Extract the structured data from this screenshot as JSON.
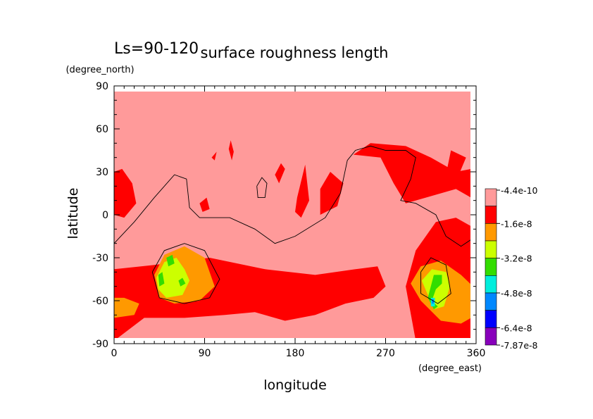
{
  "chart_data": {
    "type": "heatmap",
    "title": "surface roughness length",
    "subtitle": "Ls=90-120",
    "xlabel": "longitude",
    "ylabel": "latitude",
    "x_unit": "(degree_east)",
    "y_unit": "(degree_north)",
    "xlim": [
      0,
      360
    ],
    "ylim": [
      -90,
      90
    ],
    "x_ticks": [
      "0",
      "90",
      "180",
      "270",
      "360"
    ],
    "y_ticks": [
      "90",
      "60",
      "30",
      "0",
      "-30",
      "-60",
      "-90"
    ],
    "x_tick_values": [
      0,
      90,
      180,
      270,
      360
    ],
    "y_tick_values": [
      90,
      60,
      30,
      0,
      -30,
      -60,
      -90
    ],
    "colorbar": {
      "labels": [
        "-4.4e-10",
        "-1.6e-8",
        "-3.2e-8",
        "-4.8e-8",
        "-6.4e-8",
        "-7.87e-8"
      ],
      "colors": [
        "#ff9a9a",
        "#ff0000",
        "#ff9900",
        "#ccff00",
        "#33dd00",
        "#00eedd",
        "#0088ff",
        "#0000ff",
        "#8800bb"
      ]
    },
    "background_color": "#ff9a9a",
    "regions": [
      {
        "level": 1,
        "color": "#ff0000",
        "points": [
          [
            0,
            -88
          ],
          [
            0,
            -38
          ],
          [
            40,
            -35
          ],
          [
            95,
            -30
          ],
          [
            150,
            -38
          ],
          [
            200,
            -42
          ],
          [
            240,
            -38
          ],
          [
            262,
            -36
          ],
          [
            270,
            -50
          ],
          [
            258,
            -58
          ],
          [
            230,
            -62
          ],
          [
            200,
            -70
          ],
          [
            170,
            -74
          ],
          [
            140,
            -68
          ],
          [
            110,
            -70
          ],
          [
            70,
            -72
          ],
          [
            30,
            -72
          ],
          [
            0,
            -88
          ]
        ]
      },
      {
        "level": 1,
        "color": "#ff0000",
        "points": [
          [
            300,
            -88
          ],
          [
            290,
            -50
          ],
          [
            300,
            -25
          ],
          [
            320,
            -5
          ],
          [
            340,
            -2
          ],
          [
            360,
            -10
          ],
          [
            360,
            -88
          ],
          [
            300,
            -88
          ]
        ]
      },
      {
        "level": 1,
        "color": "#ff0000",
        "points": [
          [
            238,
            42
          ],
          [
            255,
            50
          ],
          [
            290,
            48
          ],
          [
            315,
            40
          ],
          [
            340,
            30
          ],
          [
            355,
            32
          ],
          [
            360,
            45
          ],
          [
            360,
            10
          ],
          [
            340,
            18
          ],
          [
            310,
            12
          ],
          [
            290,
            8
          ],
          [
            278,
            22
          ],
          [
            265,
            40
          ],
          [
            238,
            42
          ]
        ]
      },
      {
        "level": 1,
        "color": "#ff0000",
        "points": [
          [
            0,
            30
          ],
          [
            8,
            32
          ],
          [
            18,
            22
          ],
          [
            22,
            8
          ],
          [
            10,
            -2
          ],
          [
            0,
            0
          ],
          [
            0,
            30
          ]
        ]
      },
      {
        "level": 1,
        "color": "#ff0000",
        "points": [
          [
            205,
            0
          ],
          [
            222,
            6
          ],
          [
            228,
            22
          ],
          [
            215,
            30
          ],
          [
            205,
            18
          ],
          [
            205,
            0
          ]
        ]
      },
      {
        "level": 1,
        "color": "#ff0000",
        "points": [
          [
            186,
            -2
          ],
          [
            194,
            10
          ],
          [
            190,
            35
          ],
          [
            182,
            12
          ],
          [
            180,
            2
          ],
          [
            186,
            -2
          ]
        ]
      },
      {
        "level": 1,
        "color": "#ff0000",
        "points": [
          [
            164,
            22
          ],
          [
            170,
            32
          ],
          [
            166,
            36
          ],
          [
            160,
            28
          ],
          [
            164,
            22
          ]
        ]
      },
      {
        "level": 1,
        "color": "#ff0000",
        "points": [
          [
            85,
            8
          ],
          [
            92,
            12
          ],
          [
            95,
            4
          ],
          [
            88,
            2
          ],
          [
            85,
            8
          ]
        ]
      },
      {
        "level": 1,
        "color": "#ff0000",
        "points": [
          [
            116,
            52
          ],
          [
            119,
            44
          ],
          [
            117,
            38
          ],
          [
            114,
            46
          ],
          [
            116,
            52
          ]
        ]
      },
      {
        "level": 1,
        "color": "#ff0000",
        "points": [
          [
            330,
            28
          ],
          [
            344,
            30
          ],
          [
            350,
            40
          ],
          [
            335,
            45
          ],
          [
            330,
            28
          ]
        ]
      },
      {
        "level": 1,
        "color": "#ff0000",
        "points": [
          [
            97,
            40
          ],
          [
            102,
            44
          ],
          [
            100,
            38
          ],
          [
            97,
            40
          ]
        ]
      },
      {
        "level": 2,
        "color": "#ff9900",
        "points": [
          [
            40,
            -42
          ],
          [
            50,
            -28
          ],
          [
            70,
            -22
          ],
          [
            90,
            -30
          ],
          [
            100,
            -50
          ],
          [
            85,
            -60
          ],
          [
            60,
            -62
          ],
          [
            45,
            -58
          ],
          [
            40,
            -42
          ]
        ]
      },
      {
        "level": 2,
        "color": "#ff9900",
        "points": [
          [
            0,
            -58
          ],
          [
            10,
            -58
          ],
          [
            25,
            -62
          ],
          [
            20,
            -70
          ],
          [
            0,
            -72
          ],
          [
            0,
            -58
          ]
        ]
      },
      {
        "level": 2,
        "color": "#ff9900",
        "points": [
          [
            295,
            -48
          ],
          [
            305,
            -36
          ],
          [
            325,
            -32
          ],
          [
            345,
            -42
          ],
          [
            360,
            -52
          ],
          [
            360,
            -70
          ],
          [
            345,
            -76
          ],
          [
            325,
            -74
          ],
          [
            305,
            -60
          ],
          [
            295,
            -48
          ]
        ]
      },
      {
        "level": 3,
        "color": "#ccff00",
        "points": [
          [
            42,
            -44
          ],
          [
            50,
            -33
          ],
          [
            62,
            -30
          ],
          [
            70,
            -38
          ],
          [
            75,
            -46
          ],
          [
            68,
            -56
          ],
          [
            52,
            -58
          ],
          [
            44,
            -52
          ],
          [
            42,
            -44
          ]
        ]
      },
      {
        "level": 3,
        "color": "#ccff00",
        "points": [
          [
            306,
            -46
          ],
          [
            316,
            -38
          ],
          [
            330,
            -40
          ],
          [
            334,
            -50
          ],
          [
            328,
            -64
          ],
          [
            318,
            -66
          ],
          [
            312,
            -56
          ],
          [
            306,
            -46
          ]
        ]
      },
      {
        "level": 4,
        "color": "#33dd00",
        "points": [
          [
            52,
            -30
          ],
          [
            58,
            -28
          ],
          [
            60,
            -34
          ],
          [
            54,
            -36
          ],
          [
            52,
            -30
          ]
        ]
      },
      {
        "level": 4,
        "color": "#33dd00",
        "points": [
          [
            44,
            -42
          ],
          [
            48,
            -40
          ],
          [
            50,
            -48
          ],
          [
            45,
            -50
          ],
          [
            44,
            -42
          ]
        ]
      },
      {
        "level": 4,
        "color": "#33dd00",
        "points": [
          [
            64,
            -46
          ],
          [
            68,
            -44
          ],
          [
            71,
            -48
          ],
          [
            66,
            -50
          ],
          [
            64,
            -46
          ]
        ]
      },
      {
        "level": 4,
        "color": "#33dd00",
        "points": [
          [
            318,
            -42
          ],
          [
            326,
            -42
          ],
          [
            326,
            -48
          ],
          [
            320,
            -52
          ],
          [
            316,
            -60
          ],
          [
            322,
            -64
          ],
          [
            318,
            -66
          ],
          [
            312,
            -58
          ],
          [
            318,
            -42
          ]
        ]
      },
      {
        "level": 5,
        "color": "#00eedd",
        "points": [
          [
            315,
            -58
          ],
          [
            319,
            -58
          ],
          [
            319,
            -64
          ],
          [
            315,
            -64
          ],
          [
            315,
            -58
          ]
        ]
      },
      {
        "level": 6,
        "color": "#0088ff",
        "points": [
          [
            316,
            -59
          ],
          [
            318,
            -59
          ],
          [
            318,
            -62
          ],
          [
            316,
            -62
          ],
          [
            316,
            -59
          ]
        ]
      }
    ],
    "contours": [
      [
        [
          0,
          -20
        ],
        [
          20,
          -5
        ],
        [
          40,
          12
        ],
        [
          60,
          28
        ],
        [
          72,
          25
        ],
        [
          75,
          5
        ],
        [
          85,
          -2
        ],
        [
          115,
          -2
        ],
        [
          140,
          -10
        ],
        [
          160,
          -20
        ],
        [
          180,
          -15
        ],
        [
          210,
          -2
        ],
        [
          225,
          15
        ],
        [
          232,
          38
        ],
        [
          240,
          45
        ],
        [
          255,
          48
        ],
        [
          270,
          45
        ],
        [
          290,
          45
        ],
        [
          300,
          40
        ],
        [
          295,
          25
        ],
        [
          285,
          10
        ],
        [
          300,
          8
        ],
        [
          320,
          0
        ],
        [
          330,
          -15
        ],
        [
          345,
          -22
        ],
        [
          360,
          -15
        ]
      ],
      [
        [
          38,
          -40
        ],
        [
          50,
          -25
        ],
        [
          70,
          -20
        ],
        [
          90,
          -25
        ],
        [
          105,
          -45
        ],
        [
          95,
          -58
        ],
        [
          70,
          -62
        ],
        [
          45,
          -58
        ],
        [
          38,
          -40
        ]
      ],
      [
        [
          305,
          -40
        ],
        [
          315,
          -30
        ],
        [
          330,
          -35
        ],
        [
          335,
          -55
        ],
        [
          322,
          -62
        ],
        [
          305,
          -55
        ],
        [
          305,
          -40
        ]
      ],
      [
        [
          142,
          20
        ],
        [
          147,
          26
        ],
        [
          152,
          22
        ],
        [
          150,
          12
        ],
        [
          143,
          12
        ],
        [
          142,
          20
        ]
      ]
    ]
  }
}
